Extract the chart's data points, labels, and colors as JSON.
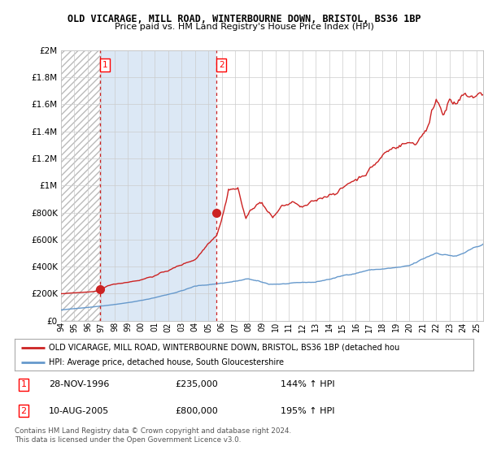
{
  "title": "OLD VICARAGE, MILL ROAD, WINTERBOURNE DOWN, BRISTOL, BS36 1BP",
  "subtitle": "Price paid vs. HM Land Registry's House Price Index (HPI)",
  "ylim": [
    0,
    2000000
  ],
  "yticks": [
    0,
    200000,
    400000,
    600000,
    800000,
    1000000,
    1200000,
    1400000,
    1600000,
    1800000,
    2000000
  ],
  "ytick_labels": [
    "£0",
    "£200K",
    "£400K",
    "£600K",
    "£800K",
    "£1M",
    "£1.2M",
    "£1.4M",
    "£1.6M",
    "£1.8M",
    "£2M"
  ],
  "hpi_color": "#6699cc",
  "price_color": "#cc2222",
  "dashed_color": "#cc2222",
  "t1_x": 1996.92,
  "t1_y": 235000,
  "t2_x": 2005.61,
  "t2_y": 800000,
  "legend_line1": "OLD VICARAGE, MILL ROAD, WINTERBOURNE DOWN, BRISTOL, BS36 1BP (detached hou",
  "legend_line2": "HPI: Average price, detached house, South Gloucestershire",
  "row1_label": "1",
  "row1_date": "28-NOV-1996",
  "row1_price": "£235,000",
  "row1_hpi": "144% ↑ HPI",
  "row2_label": "2",
  "row2_date": "10-AUG-2005",
  "row2_price": "£800,000",
  "row2_hpi": "195% ↑ HPI",
  "footer": "Contains HM Land Registry data © Crown copyright and database right 2024.\nThis data is licensed under the Open Government Licence v3.0.",
  "bg_color": "#ffffff",
  "plot_bg_color": "#ffffff",
  "grid_color": "#cccccc",
  "hatch_bg": "#e8e8e8",
  "fill_between_color": "#dce8f5",
  "xlim_start": 1994.0,
  "xlim_end": 2025.5
}
